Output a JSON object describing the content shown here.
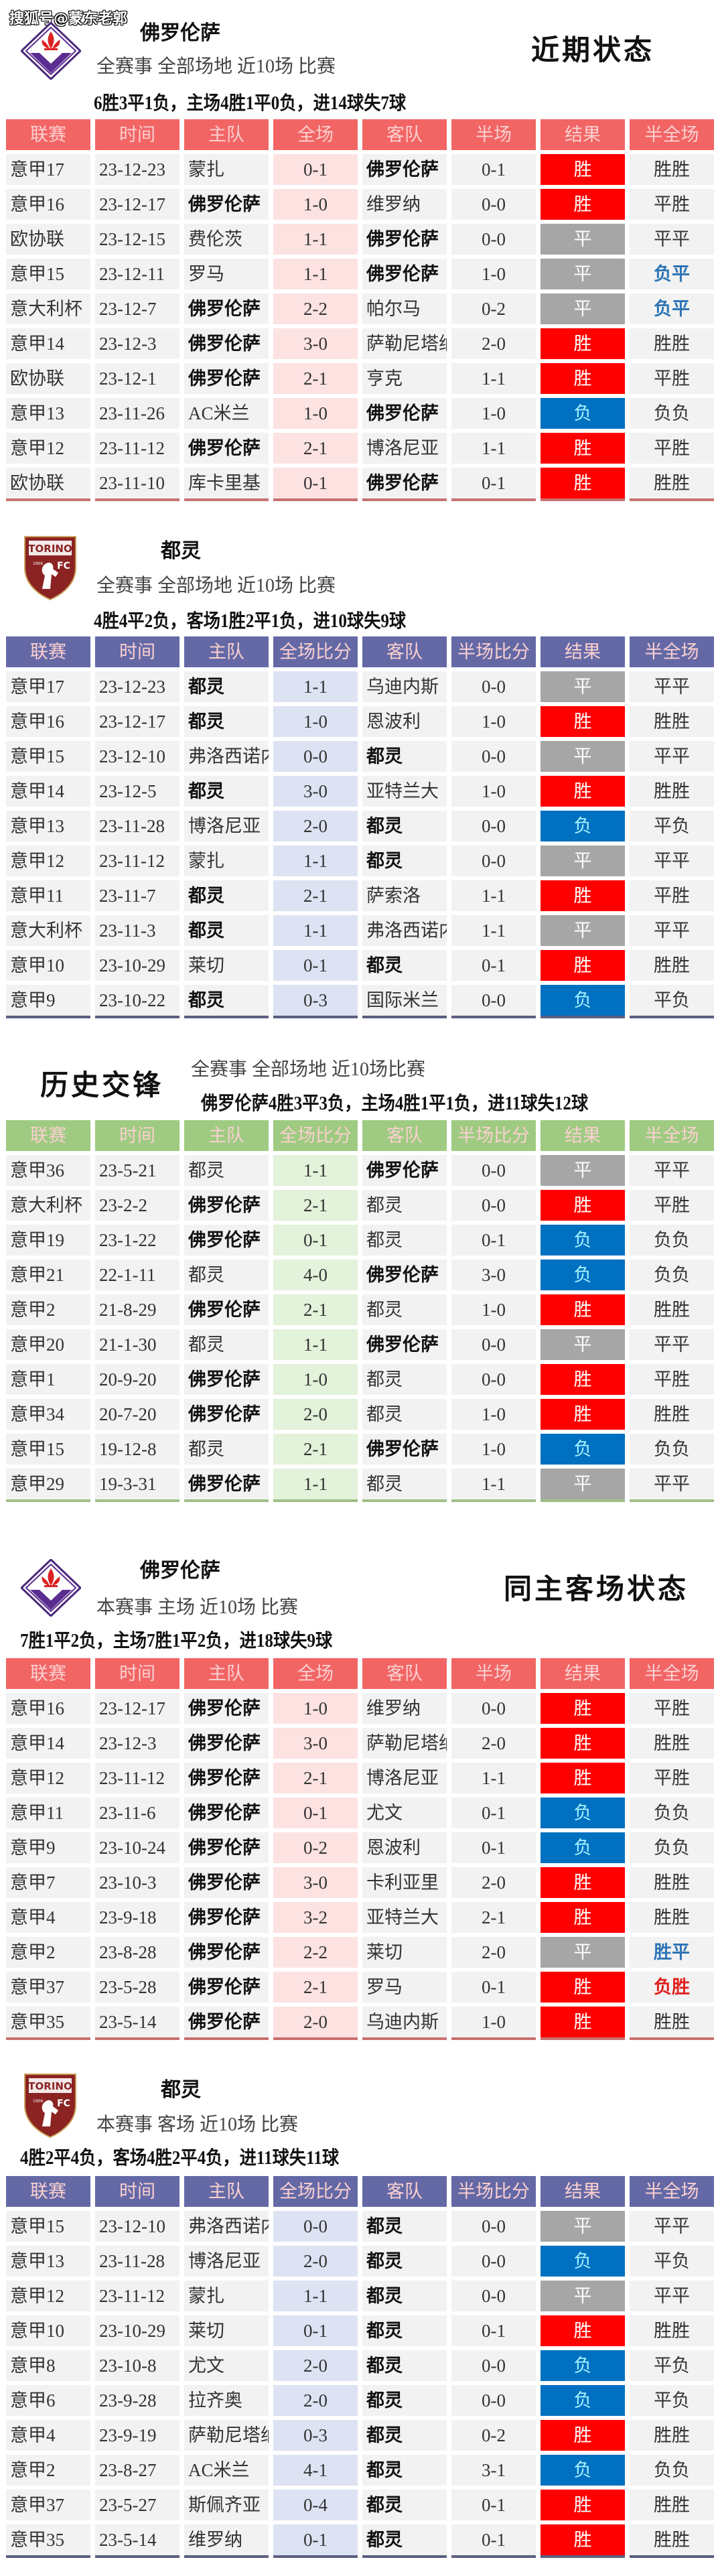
{
  "watermark": "搜狐号@蒙东老郭",
  "colors": {
    "win": "#ff0000",
    "draw": "#a6a6a6",
    "loss": "#0070c0",
    "loss_text": "#a8f4ff",
    "fiorentina_header": "#f26565",
    "fiorentina_score_bg": "#fde2e2",
    "fiorentina_endline": "#c87070",
    "torino_header": "#6469a6",
    "torino_score_bg": "#dde3f3",
    "torino_endline": "#5a5e80",
    "h2h_header": "#9ecb81",
    "h2h_score_bg": "#e3f2da",
    "h2h_endline": "#9fbf8a"
  },
  "sections": [
    {
      "id": "fiorentina-recent",
      "logo": "fiorentina-logo",
      "team": "佛罗伦萨",
      "heading": "近期状态",
      "subtitle": "全赛事  全部场地  近10场  比赛",
      "summary": "6胜3平1负，主场4胜1平0负，进14球失7球",
      "theme": "fiorentina",
      "columns": [
        "联赛",
        "时间",
        "主队",
        "全场",
        "客队",
        "半场",
        "结果",
        "半全场"
      ],
      "rows": [
        {
          "league": "意甲17",
          "date": "23-12-23",
          "home": "蒙扎",
          "ft": "0-1",
          "away": "佛罗伦萨",
          "ht": "0-1",
          "result": "胜",
          "hf": "胜胜",
          "focus": "away"
        },
        {
          "league": "意甲16",
          "date": "23-12-17",
          "home": "佛罗伦萨",
          "ft": "1-0",
          "away": "维罗纳",
          "ht": "0-0",
          "result": "胜",
          "hf": "平胜",
          "focus": "home"
        },
        {
          "league": "欧协联",
          "date": "23-12-15",
          "home": "费伦茨",
          "ft": "1-1",
          "away": "佛罗伦萨",
          "ht": "0-0",
          "result": "平",
          "hf": "平平",
          "focus": "away"
        },
        {
          "league": "意甲15",
          "date": "23-12-11",
          "home": "罗马",
          "ft": "1-1",
          "away": "佛罗伦萨",
          "ht": "1-0",
          "result": "平",
          "hf": "负平",
          "focus": "away",
          "hf_color": "blue"
        },
        {
          "league": "意大利杯",
          "date": "23-12-7",
          "home": "佛罗伦萨",
          "ft": "2-2",
          "away": "帕尔马",
          "ht": "0-2",
          "result": "平",
          "hf": "负平",
          "focus": "home",
          "hf_color": "blue"
        },
        {
          "league": "意甲14",
          "date": "23-12-3",
          "home": "佛罗伦萨",
          "ft": "3-0",
          "away": "萨勒尼塔纳",
          "ht": "2-0",
          "result": "胜",
          "hf": "胜胜",
          "focus": "home"
        },
        {
          "league": "欧协联",
          "date": "23-12-1",
          "home": "佛罗伦萨",
          "ft": "2-1",
          "away": "亨克",
          "ht": "1-1",
          "result": "胜",
          "hf": "平胜",
          "focus": "home"
        },
        {
          "league": "意甲13",
          "date": "23-11-26",
          "home": "AC米兰",
          "ft": "1-0",
          "away": "佛罗伦萨",
          "ht": "1-0",
          "result": "负",
          "hf": "负负",
          "focus": "away"
        },
        {
          "league": "意甲12",
          "date": "23-11-12",
          "home": "佛罗伦萨",
          "ft": "2-1",
          "away": "博洛尼亚",
          "ht": "1-1",
          "result": "胜",
          "hf": "平胜",
          "focus": "home"
        },
        {
          "league": "欧协联",
          "date": "23-11-10",
          "home": "库卡里基",
          "ft": "0-1",
          "away": "佛罗伦萨",
          "ht": "0-1",
          "result": "胜",
          "hf": "胜胜",
          "focus": "away"
        }
      ]
    },
    {
      "id": "torino-recent",
      "logo": "torino-logo",
      "team": "都灵",
      "subtitle": "全赛事  全部场地  近10场  比赛",
      "summary": "4胜4平2负，客场1胜2平1负，进10球失9球",
      "theme": "torino",
      "columns": [
        "联赛",
        "时间",
        "主队",
        "全场比分",
        "客队",
        "半场比分",
        "结果",
        "半全场"
      ],
      "rows": [
        {
          "league": "意甲17",
          "date": "23-12-23",
          "home": "都灵",
          "ft": "1-1",
          "away": "乌迪内斯",
          "ht": "0-0",
          "result": "平",
          "hf": "平平",
          "focus": "home"
        },
        {
          "league": "意甲16",
          "date": "23-12-17",
          "home": "都灵",
          "ft": "1-0",
          "away": "恩波利",
          "ht": "1-0",
          "result": "胜",
          "hf": "胜胜",
          "focus": "home"
        },
        {
          "league": "意甲15",
          "date": "23-12-10",
          "home": "弗洛西诺内",
          "ft": "0-0",
          "away": "都灵",
          "ht": "0-0",
          "result": "平",
          "hf": "平平",
          "focus": "away"
        },
        {
          "league": "意甲14",
          "date": "23-12-5",
          "home": "都灵",
          "ft": "3-0",
          "away": "亚特兰大",
          "ht": "1-0",
          "result": "胜",
          "hf": "胜胜",
          "focus": "home"
        },
        {
          "league": "意甲13",
          "date": "23-11-28",
          "home": "博洛尼亚",
          "ft": "2-0",
          "away": "都灵",
          "ht": "0-0",
          "result": "负",
          "hf": "平负",
          "focus": "away"
        },
        {
          "league": "意甲12",
          "date": "23-11-12",
          "home": "蒙扎",
          "ft": "1-1",
          "away": "都灵",
          "ht": "0-0",
          "result": "平",
          "hf": "平平",
          "focus": "away"
        },
        {
          "league": "意甲11",
          "date": "23-11-7",
          "home": "都灵",
          "ft": "2-1",
          "away": "萨索洛",
          "ht": "1-1",
          "result": "胜",
          "hf": "平胜",
          "focus": "home"
        },
        {
          "league": "意大利杯",
          "date": "23-11-3",
          "home": "都灵",
          "ft": "1-1",
          "away": "弗洛西诺内",
          "ht": "1-1",
          "result": "平",
          "hf": "平平",
          "focus": "home"
        },
        {
          "league": "意甲10",
          "date": "23-10-29",
          "home": "莱切",
          "ft": "0-1",
          "away": "都灵",
          "ht": "0-1",
          "result": "胜",
          "hf": "胜胜",
          "focus": "away"
        },
        {
          "league": "意甲9",
          "date": "23-10-22",
          "home": "都灵",
          "ft": "0-3",
          "away": "国际米兰",
          "ht": "0-0",
          "result": "负",
          "hf": "平负",
          "focus": "home"
        }
      ]
    },
    {
      "id": "head-to-head",
      "heading": "历史交锋",
      "subtitle": "全赛事  全部场地  近10场比赛",
      "summary": "佛罗伦萨4胜3平3负，主场4胜1平1负，进11球失12球",
      "theme": "h2h",
      "columns": [
        "联赛",
        "时间",
        "主队",
        "全场比分",
        "客队",
        "半场比分",
        "结果",
        "半全场"
      ],
      "rows": [
        {
          "league": "意甲36",
          "date": "23-5-21",
          "home": "都灵",
          "ft": "1-1",
          "away": "佛罗伦萨",
          "ht": "0-0",
          "result": "平",
          "hf": "平平",
          "focus": "away"
        },
        {
          "league": "意大利杯",
          "date": "23-2-2",
          "home": "佛罗伦萨",
          "ft": "2-1",
          "away": "都灵",
          "ht": "0-0",
          "result": "胜",
          "hf": "平胜",
          "focus": "home"
        },
        {
          "league": "意甲19",
          "date": "23-1-22",
          "home": "佛罗伦萨",
          "ft": "0-1",
          "away": "都灵",
          "ht": "0-1",
          "result": "负",
          "hf": "负负",
          "focus": "home"
        },
        {
          "league": "意甲21",
          "date": "22-1-11",
          "home": "都灵",
          "ft": "4-0",
          "away": "佛罗伦萨",
          "ht": "3-0",
          "result": "负",
          "hf": "负负",
          "focus": "away"
        },
        {
          "league": "意甲2",
          "date": "21-8-29",
          "home": "佛罗伦萨",
          "ft": "2-1",
          "away": "都灵",
          "ht": "1-0",
          "result": "胜",
          "hf": "胜胜",
          "focus": "home"
        },
        {
          "league": "意甲20",
          "date": "21-1-30",
          "home": "都灵",
          "ft": "1-1",
          "away": "佛罗伦萨",
          "ht": "0-0",
          "result": "平",
          "hf": "平平",
          "focus": "away"
        },
        {
          "league": "意甲1",
          "date": "20-9-20",
          "home": "佛罗伦萨",
          "ft": "1-0",
          "away": "都灵",
          "ht": "0-0",
          "result": "胜",
          "hf": "平胜",
          "focus": "home"
        },
        {
          "league": "意甲34",
          "date": "20-7-20",
          "home": "佛罗伦萨",
          "ft": "2-0",
          "away": "都灵",
          "ht": "1-0",
          "result": "胜",
          "hf": "胜胜",
          "focus": "home"
        },
        {
          "league": "意甲15",
          "date": "19-12-8",
          "home": "都灵",
          "ft": "2-1",
          "away": "佛罗伦萨",
          "ht": "1-0",
          "result": "负",
          "hf": "负负",
          "focus": "away"
        },
        {
          "league": "意甲29",
          "date": "19-3-31",
          "home": "佛罗伦萨",
          "ft": "1-1",
          "away": "都灵",
          "ht": "1-1",
          "result": "平",
          "hf": "平平",
          "focus": "home"
        }
      ]
    },
    {
      "id": "fiorentina-home",
      "logo": "fiorentina-logo",
      "team": "佛罗伦萨",
      "heading": "同主客场状态",
      "subtitle": "本赛事  主场  近10场  比赛",
      "summary": "7胜1平2负，主场7胜1平2负，进18球失9球",
      "theme": "fiorentina",
      "columns": [
        "联赛",
        "时间",
        "主队",
        "全场",
        "客队",
        "半场",
        "结果",
        "半全场"
      ],
      "rows": [
        {
          "league": "意甲16",
          "date": "23-12-17",
          "home": "佛罗伦萨",
          "ft": "1-0",
          "away": "维罗纳",
          "ht": "0-0",
          "result": "胜",
          "hf": "平胜",
          "focus": "home"
        },
        {
          "league": "意甲14",
          "date": "23-12-3",
          "home": "佛罗伦萨",
          "ft": "3-0",
          "away": "萨勒尼塔纳",
          "ht": "2-0",
          "result": "胜",
          "hf": "胜胜",
          "focus": "home"
        },
        {
          "league": "意甲12",
          "date": "23-11-12",
          "home": "佛罗伦萨",
          "ft": "2-1",
          "away": "博洛尼亚",
          "ht": "1-1",
          "result": "胜",
          "hf": "平胜",
          "focus": "home"
        },
        {
          "league": "意甲11",
          "date": "23-11-6",
          "home": "佛罗伦萨",
          "ft": "0-1",
          "away": "尤文",
          "ht": "0-1",
          "result": "负",
          "hf": "负负",
          "focus": "home"
        },
        {
          "league": "意甲9",
          "date": "23-10-24",
          "home": "佛罗伦萨",
          "ft": "0-2",
          "away": "恩波利",
          "ht": "0-1",
          "result": "负",
          "hf": "负负",
          "focus": "home"
        },
        {
          "league": "意甲7",
          "date": "23-10-3",
          "home": "佛罗伦萨",
          "ft": "3-0",
          "away": "卡利亚里",
          "ht": "2-0",
          "result": "胜",
          "hf": "胜胜",
          "focus": "home"
        },
        {
          "league": "意甲4",
          "date": "23-9-18",
          "home": "佛罗伦萨",
          "ft": "3-2",
          "away": "亚特兰大",
          "ht": "2-1",
          "result": "胜",
          "hf": "胜胜",
          "focus": "home"
        },
        {
          "league": "意甲2",
          "date": "23-8-28",
          "home": "佛罗伦萨",
          "ft": "2-2",
          "away": "莱切",
          "ht": "2-0",
          "result": "平",
          "hf": "胜平",
          "focus": "home",
          "hf_color": "blue"
        },
        {
          "league": "意甲37",
          "date": "23-5-28",
          "home": "佛罗伦萨",
          "ft": "2-1",
          "away": "罗马",
          "ht": "0-1",
          "result": "胜",
          "hf": "负胜",
          "focus": "home",
          "hf_color": "red"
        },
        {
          "league": "意甲35",
          "date": "23-5-14",
          "home": "佛罗伦萨",
          "ft": "2-0",
          "away": "乌迪内斯",
          "ht": "1-0",
          "result": "胜",
          "hf": "胜胜",
          "focus": "home"
        }
      ]
    },
    {
      "id": "torino-away",
      "logo": "torino-logo",
      "team": "都灵",
      "subtitle": "本赛事  客场  近10场  比赛",
      "summary": "4胜2平4负，客场4胜2平4负，进11球失11球",
      "theme": "torino",
      "columns": [
        "联赛",
        "时间",
        "主队",
        "全场比分",
        "客队",
        "半场比分",
        "结果",
        "半全场"
      ],
      "rows": [
        {
          "league": "意甲15",
          "date": "23-12-10",
          "home": "弗洛西诺内",
          "ft": "0-0",
          "away": "都灵",
          "ht": "0-0",
          "result": "平",
          "hf": "平平",
          "focus": "away"
        },
        {
          "league": "意甲13",
          "date": "23-11-28",
          "home": "博洛尼亚",
          "ft": "2-0",
          "away": "都灵",
          "ht": "0-0",
          "result": "负",
          "hf": "平负",
          "focus": "away"
        },
        {
          "league": "意甲12",
          "date": "23-11-12",
          "home": "蒙扎",
          "ft": "1-1",
          "away": "都灵",
          "ht": "0-0",
          "result": "平",
          "hf": "平平",
          "focus": "away"
        },
        {
          "league": "意甲10",
          "date": "23-10-29",
          "home": "莱切",
          "ft": "0-1",
          "away": "都灵",
          "ht": "0-1",
          "result": "胜",
          "hf": "胜胜",
          "focus": "away"
        },
        {
          "league": "意甲8",
          "date": "23-10-8",
          "home": "尤文",
          "ft": "2-0",
          "away": "都灵",
          "ht": "0-0",
          "result": "负",
          "hf": "平负",
          "focus": "away"
        },
        {
          "league": "意甲6",
          "date": "23-9-28",
          "home": "拉齐奥",
          "ft": "2-0",
          "away": "都灵",
          "ht": "0-0",
          "result": "负",
          "hf": "平负",
          "focus": "away"
        },
        {
          "league": "意甲4",
          "date": "23-9-19",
          "home": "萨勒尼塔纳",
          "ft": "0-3",
          "away": "都灵",
          "ht": "0-2",
          "result": "胜",
          "hf": "胜胜",
          "focus": "away"
        },
        {
          "league": "意甲2",
          "date": "23-8-27",
          "home": "AC米兰",
          "ft": "4-1",
          "away": "都灵",
          "ht": "3-1",
          "result": "负",
          "hf": "负负",
          "focus": "away"
        },
        {
          "league": "意甲37",
          "date": "23-5-27",
          "home": "斯佩齐亚",
          "ft": "0-4",
          "away": "都灵",
          "ht": "0-1",
          "result": "胜",
          "hf": "胜胜",
          "focus": "away"
        },
        {
          "league": "意甲35",
          "date": "23-5-14",
          "home": "维罗纳",
          "ft": "0-1",
          "away": "都灵",
          "ht": "0-1",
          "result": "胜",
          "hf": "胜胜",
          "focus": "away"
        }
      ]
    }
  ]
}
